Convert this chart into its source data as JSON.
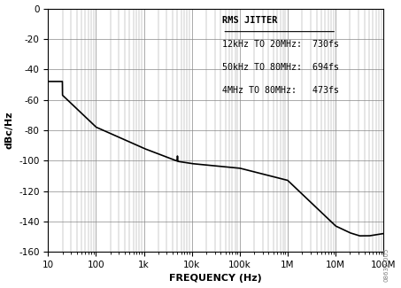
{
  "title": "",
  "xlabel": "FREQUENCY (Hz)",
  "ylabel": "dBc/Hz",
  "xlim": [
    10,
    100000000.0
  ],
  "ylim": [
    -160,
    0
  ],
  "yticks": [
    0,
    -20,
    -40,
    -60,
    -80,
    -100,
    -120,
    -140,
    -160
  ],
  "annotation_title": "RMS JITTER",
  "annotation_lines": [
    "12kHz TO 20MHz:  730fs",
    "50kHz TO 80MHz:  694fs",
    "4MHz TO 80MHz:   473fs"
  ],
  "line_color": "#000000",
  "background_color": "#ffffff",
  "grid_color": "#888888"
}
